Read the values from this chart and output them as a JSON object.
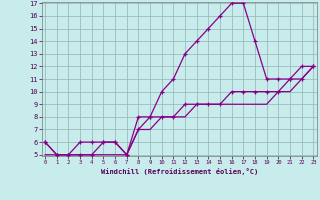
{
  "xlabel": "Windchill (Refroidissement éolien,°C)",
  "x": [
    0,
    1,
    2,
    3,
    4,
    5,
    6,
    7,
    8,
    9,
    10,
    11,
    12,
    13,
    14,
    15,
    16,
    17,
    18,
    19,
    20,
    21,
    22,
    23
  ],
  "temp": [
    6,
    5,
    5,
    6,
    6,
    6,
    6,
    5,
    8,
    8,
    10,
    11,
    13,
    14,
    15,
    16,
    17,
    17,
    14,
    11,
    11,
    11,
    12,
    12
  ],
  "wc1": [
    6,
    5,
    5,
    5,
    5,
    6,
    6,
    5,
    7,
    8,
    8,
    8,
    9,
    9,
    9,
    9,
    10,
    10,
    10,
    10,
    10,
    11,
    11,
    12
  ],
  "wc2": [
    5,
    5,
    5,
    5,
    5,
    5,
    5,
    5,
    7,
    7,
    8,
    8,
    8,
    9,
    9,
    9,
    9,
    9,
    9,
    9,
    10,
    10,
    11,
    12
  ],
  "line_color": "#880088",
  "bg_color": "#c8ecec",
  "grid_color": "#90b4b4",
  "ylim": [
    5,
    17
  ],
  "xlim": [
    0,
    23
  ],
  "yticks": [
    5,
    6,
    7,
    8,
    9,
    10,
    11,
    12,
    13,
    14,
    15,
    16,
    17
  ],
  "xticks": [
    0,
    1,
    2,
    3,
    4,
    5,
    6,
    7,
    8,
    9,
    10,
    11,
    12,
    13,
    14,
    15,
    16,
    17,
    18,
    19,
    20,
    21,
    22,
    23
  ],
  "ylabel_fontsize": 5,
  "tick_fontsize_y": 5,
  "tick_fontsize_x": 4
}
